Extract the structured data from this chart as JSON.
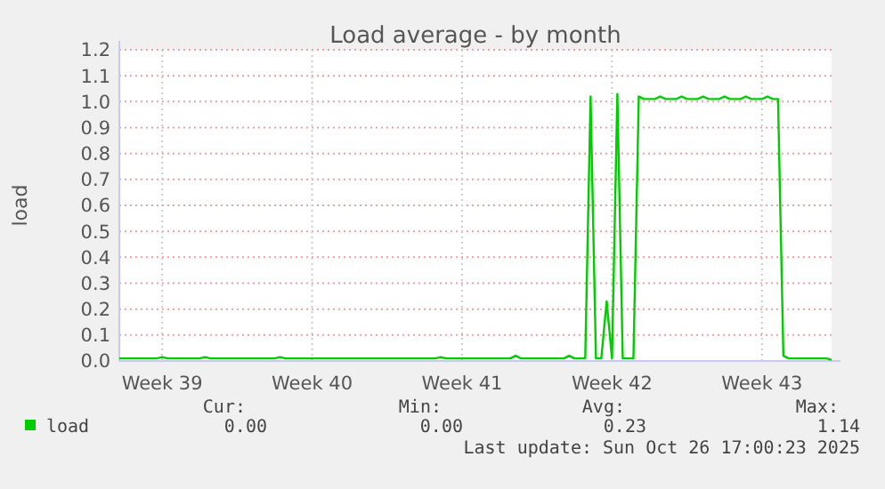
{
  "chart_data": {
    "type": "line",
    "title": "Load average - by month",
    "ylabel": "load",
    "categories": [
      null,
      null,
      null,
      null,
      null,
      null,
      null,
      null,
      "Week 39",
      null,
      null,
      null,
      null,
      null,
      null,
      null,
      null,
      null,
      null,
      null,
      null,
      null,
      null,
      null,
      null,
      null,
      null,
      null,
      null,
      null,
      null,
      null,
      null,
      null,
      null,
      null,
      "Week 40",
      null,
      null,
      null,
      null,
      null,
      null,
      null,
      null,
      null,
      null,
      null,
      null,
      null,
      null,
      null,
      null,
      null,
      null,
      null,
      null,
      null,
      null,
      null,
      null,
      null,
      null,
      null,
      "Week 41",
      null,
      null,
      null,
      null,
      null,
      null,
      null,
      null,
      null,
      null,
      null,
      null,
      null,
      null,
      null,
      null,
      null,
      null,
      null,
      null,
      null,
      null,
      null,
      null,
      null,
      null,
      null,
      "Week 42",
      null,
      null,
      null,
      null,
      null,
      null,
      null,
      null,
      null,
      null,
      null,
      null,
      null,
      null,
      null,
      null,
      null,
      null,
      null,
      null,
      null,
      null,
      null,
      null,
      null,
      null,
      null,
      "Week 43",
      null,
      null,
      null,
      null,
      null,
      null,
      null,
      null,
      null,
      null,
      null,
      null,
      null
    ],
    "series": [
      {
        "name": "load",
        "color": "#00cc00",
        "values": [
          0.01,
          0.01,
          0.01,
          0.01,
          0.01,
          0.01,
          0.01,
          0.01,
          0.015,
          0.01,
          0.01,
          0.01,
          0.01,
          0.01,
          0.01,
          0.01,
          0.015,
          0.01,
          0.01,
          0.01,
          0.01,
          0.01,
          0.01,
          0.01,
          0.01,
          0.01,
          0.01,
          0.01,
          0.01,
          0.01,
          0.015,
          0.01,
          0.01,
          0.01,
          0.01,
          0.01,
          0.01,
          0.01,
          0.01,
          0.01,
          0.01,
          0.01,
          0.01,
          0.01,
          0.01,
          0.01,
          0.01,
          0.01,
          0.01,
          0.01,
          0.01,
          0.01,
          0.01,
          0.01,
          0.01,
          0.01,
          0.01,
          0.01,
          0.01,
          0.01,
          0.015,
          0.01,
          0.01,
          0.01,
          0.01,
          0.01,
          0.01,
          0.01,
          0.01,
          0.01,
          0.01,
          0.01,
          0.01,
          0.01,
          0.02,
          0.01,
          0.01,
          0.01,
          0.01,
          0.01,
          0.01,
          0.01,
          0.01,
          0.01,
          0.02,
          0.01,
          0.01,
          0.01,
          1.02,
          0.01,
          0.01,
          0.23,
          0.01,
          1.03,
          0.01,
          0.01,
          0.01,
          1.02,
          1.01,
          1.01,
          1.01,
          1.02,
          1.01,
          1.01,
          1.01,
          1.02,
          1.01,
          1.01,
          1.01,
          1.02,
          1.01,
          1.01,
          1.01,
          1.02,
          1.01,
          1.01,
          1.01,
          1.02,
          1.01,
          1.01,
          1.01,
          1.02,
          1.01,
          1.01,
          0.02,
          0.01,
          0.01,
          0.01,
          0.01,
          0.01,
          0.01,
          0.01,
          0.01,
          0.005
        ]
      }
    ],
    "ylim": [
      0,
      1.2
    ],
    "yticks": [
      {
        "value": 0,
        "label": "0.0"
      },
      {
        "value": 0.1,
        "label": "0.1"
      },
      {
        "value": 0.2,
        "label": "0.2"
      },
      {
        "value": 0.3,
        "label": "0.3"
      },
      {
        "value": 0.4,
        "label": "0.4"
      },
      {
        "value": 0.5,
        "label": "0.5"
      },
      {
        "value": 0.6,
        "label": "0.6"
      },
      {
        "value": 0.7,
        "label": "0.7"
      },
      {
        "value": 0.8,
        "label": "0.8"
      },
      {
        "value": 0.9,
        "label": "0.9"
      },
      {
        "value": 1,
        "label": "1.0"
      },
      {
        "value": 1.1,
        "label": "1.1"
      },
      {
        "value": 1.2,
        "label": "1.2"
      }
    ],
    "grid": true,
    "legend": "bottom left",
    "annotations": [
      "Cur:",
      "Min:",
      "Avg:",
      "Max:",
      "0.00",
      "0.00",
      "0.23",
      "1.14",
      "Last update: Sun Oct 26 17:00:23 2025"
    ]
  }
}
